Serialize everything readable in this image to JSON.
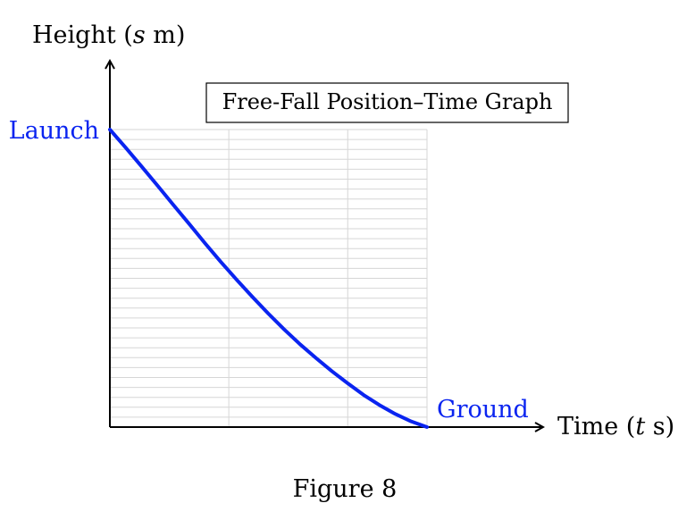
{
  "caption": "Figure 8",
  "chart_data": {
    "type": "line",
    "title": "Free-Fall Position–Time Graph",
    "xlabel": "Time (t s)",
    "ylabel": "Height (s m)",
    "xlabel_parts": [
      "Time (",
      "t",
      " s)"
    ],
    "ylabel_parts": [
      "Height (",
      "s",
      " m)"
    ],
    "xlim": [
      0,
      1
    ],
    "ylim": [
      0,
      1
    ],
    "grid": true,
    "colors": {
      "curve": "#0a24f0",
      "grid": "#d6d6d6",
      "axis": "#000000"
    },
    "series": [
      {
        "x": [
          0,
          0.05,
          0.1,
          0.15,
          0.2,
          0.25,
          0.3,
          0.35,
          0.4,
          0.45,
          0.5,
          0.55,
          0.6,
          0.65,
          0.7,
          0.75,
          0.8,
          0.85,
          0.9,
          0.95,
          1.0
        ],
        "y": [
          1.0,
          0.939,
          0.876,
          0.812,
          0.747,
          0.683,
          0.618,
          0.555,
          0.495,
          0.437,
          0.381,
          0.328,
          0.278,
          0.232,
          0.188,
          0.147,
          0.108,
          0.074,
          0.044,
          0.019,
          0.0
        ]
      }
    ],
    "annotations": [
      {
        "text": "Launch",
        "at": "start"
      },
      {
        "text": "Ground",
        "at": "end"
      }
    ]
  }
}
